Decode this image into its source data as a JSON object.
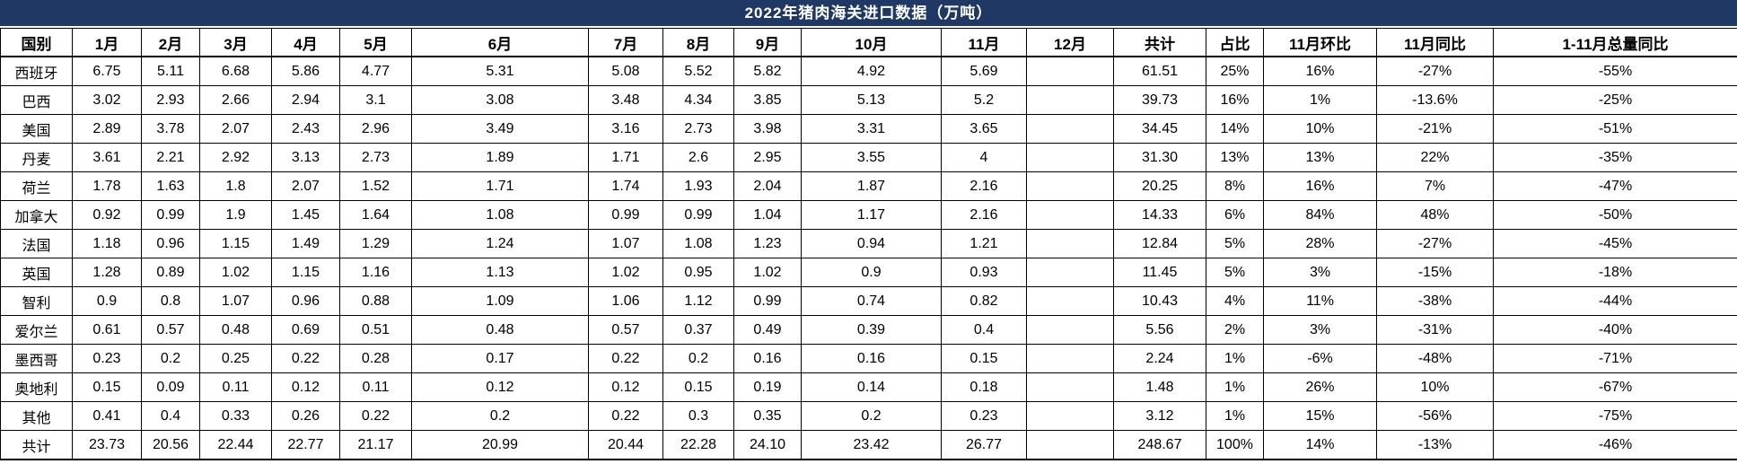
{
  "title": "2022年猪肉海关进口数据（万吨）",
  "colors": {
    "title_bg": "#1f3864",
    "title_text": "#ffffff",
    "grid": "#000000",
    "cell_bg": "#ffffff",
    "text": "#000000"
  },
  "chart_data": {
    "type": "table",
    "title": "2022年猪肉海关进口数据（万吨）",
    "columns": [
      "国别",
      "1月",
      "2月",
      "3月",
      "4月",
      "5月",
      "6月",
      "7月",
      "8月",
      "9月",
      "10月",
      "11月",
      "12月",
      "共计",
      "占比",
      "11月环比",
      "11月同比",
      "1-11月总量同比"
    ],
    "rows": [
      [
        "西班牙",
        "6.75",
        "5.11",
        "6.68",
        "5.86",
        "4.77",
        "5.31",
        "5.08",
        "5.52",
        "5.82",
        "4.92",
        "5.69",
        "",
        "61.51",
        "25%",
        "16%",
        "-27%",
        "-55%"
      ],
      [
        "巴西",
        "3.02",
        "2.93",
        "2.66",
        "2.94",
        "3.1",
        "3.08",
        "3.48",
        "4.34",
        "3.85",
        "5.13",
        "5.2",
        "",
        "39.73",
        "16%",
        "1%",
        "-13.6%",
        "-25%"
      ],
      [
        "美国",
        "2.89",
        "3.78",
        "2.07",
        "2.43",
        "2.96",
        "3.49",
        "3.16",
        "2.73",
        "3.98",
        "3.31",
        "3.65",
        "",
        "34.45",
        "14%",
        "10%",
        "-21%",
        "-51%"
      ],
      [
        "丹麦",
        "3.61",
        "2.21",
        "2.92",
        "3.13",
        "2.73",
        "1.89",
        "1.71",
        "2.6",
        "2.95",
        "3.55",
        "4",
        "",
        "31.30",
        "13%",
        "13%",
        "22%",
        "-35%"
      ],
      [
        "荷兰",
        "1.78",
        "1.63",
        "1.8",
        "2.07",
        "1.52",
        "1.71",
        "1.74",
        "1.93",
        "2.04",
        "1.87",
        "2.16",
        "",
        "20.25",
        "8%",
        "16%",
        "7%",
        "-47%"
      ],
      [
        "加拿大",
        "0.92",
        "0.99",
        "1.9",
        "1.45",
        "1.64",
        "1.08",
        "0.99",
        "0.99",
        "1.04",
        "1.17",
        "2.16",
        "",
        "14.33",
        "6%",
        "84%",
        "48%",
        "-50%"
      ],
      [
        "法国",
        "1.18",
        "0.96",
        "1.15",
        "1.49",
        "1.29",
        "1.24",
        "1.07",
        "1.08",
        "1.23",
        "0.94",
        "1.21",
        "",
        "12.84",
        "5%",
        "28%",
        "-27%",
        "-45%"
      ],
      [
        "英国",
        "1.28",
        "0.89",
        "1.02",
        "1.15",
        "1.16",
        "1.13",
        "1.02",
        "0.95",
        "1.02",
        "0.9",
        "0.93",
        "",
        "11.45",
        "5%",
        "3%",
        "-15%",
        "-18%"
      ],
      [
        "智利",
        "0.9",
        "0.8",
        "1.07",
        "0.96",
        "0.88",
        "1.09",
        "1.06",
        "1.12",
        "0.99",
        "0.74",
        "0.82",
        "",
        "10.43",
        "4%",
        "11%",
        "-38%",
        "-44%"
      ],
      [
        "爱尔兰",
        "0.61",
        "0.57",
        "0.48",
        "0.69",
        "0.51",
        "0.48",
        "0.57",
        "0.37",
        "0.49",
        "0.39",
        "0.4",
        "",
        "5.56",
        "2%",
        "3%",
        "-31%",
        "-40%"
      ],
      [
        "墨西哥",
        "0.23",
        "0.2",
        "0.25",
        "0.22",
        "0.28",
        "0.17",
        "0.22",
        "0.2",
        "0.16",
        "0.16",
        "0.15",
        "",
        "2.24",
        "1%",
        "-6%",
        "-48%",
        "-71%"
      ],
      [
        "奥地利",
        "0.15",
        "0.09",
        "0.11",
        "0.12",
        "0.11",
        "0.12",
        "0.12",
        "0.15",
        "0.19",
        "0.14",
        "0.18",
        "",
        "1.48",
        "1%",
        "26%",
        "10%",
        "-67%"
      ],
      [
        "其他",
        "0.41",
        "0.4",
        "0.33",
        "0.26",
        "0.22",
        "0.2",
        "0.22",
        "0.3",
        "0.35",
        "0.2",
        "0.23",
        "",
        "3.12",
        "1%",
        "15%",
        "-56%",
        "-75%"
      ],
      [
        "共计",
        "23.73",
        "20.56",
        "22.44",
        "22.77",
        "21.17",
        "20.99",
        "20.44",
        "22.28",
        "24.10",
        "23.42",
        "26.77",
        "",
        "248.67",
        "100%",
        "14%",
        "-13%",
        "-46%"
      ]
    ]
  }
}
